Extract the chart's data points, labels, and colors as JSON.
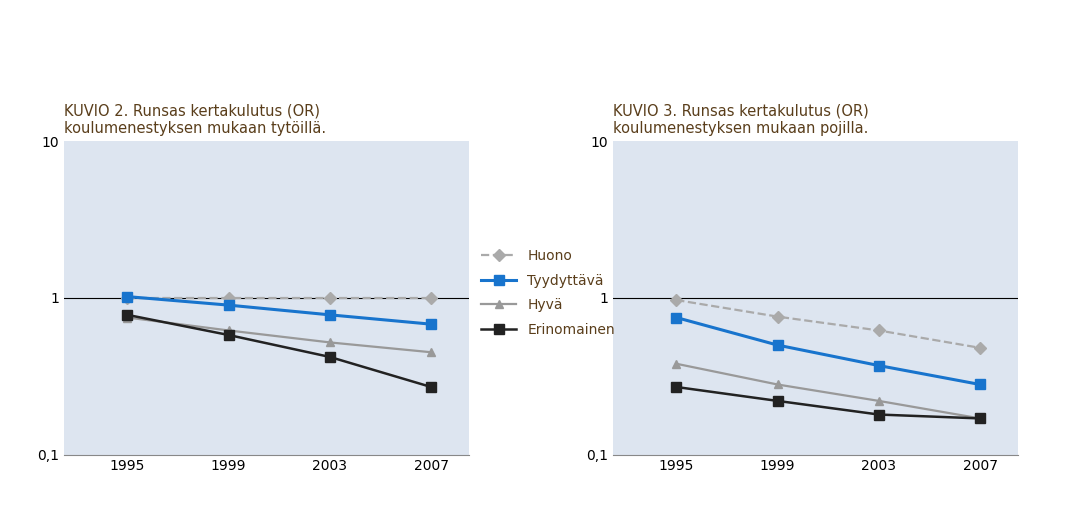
{
  "title1": "KUVIO 2. Runsas kertakulutus (OR)\nkoulumenestyksen mukaan tytöillä.",
  "title2": "KUVIO 3. Runsas kertakulutus (OR)\nkoulumenestyksen mukaan pojilla.",
  "title_color": "#5a3e1b",
  "x": [
    1995,
    1999,
    2003,
    2007
  ],
  "plot1": {
    "huono": [
      1.0,
      1.0,
      1.0,
      1.0
    ],
    "tyytyva": [
      1.02,
      0.9,
      0.78,
      0.68
    ],
    "hyva": [
      0.75,
      0.62,
      0.52,
      0.45
    ],
    "erinomainen": [
      0.78,
      0.58,
      0.42,
      0.27
    ]
  },
  "plot2": {
    "huono": [
      0.97,
      0.76,
      0.62,
      0.48
    ],
    "tyytyva": [
      0.75,
      0.5,
      0.37,
      0.28
    ],
    "hyva": [
      0.38,
      0.28,
      0.22,
      0.17
    ],
    "erinomainen": [
      0.27,
      0.22,
      0.18,
      0.17
    ]
  },
  "colors": {
    "huono": "#aaaaaa",
    "tyytyva": "#1874cd",
    "hyva": "#999999",
    "erinomainen": "#222222"
  },
  "bg_color": "#dde5f0",
  "fig_bg": "#ffffff",
  "ylim": [
    0.1,
    10
  ],
  "yticks": [
    0.1,
    1,
    10
  ],
  "xticks": [
    1995,
    1999,
    2003,
    2007
  ]
}
